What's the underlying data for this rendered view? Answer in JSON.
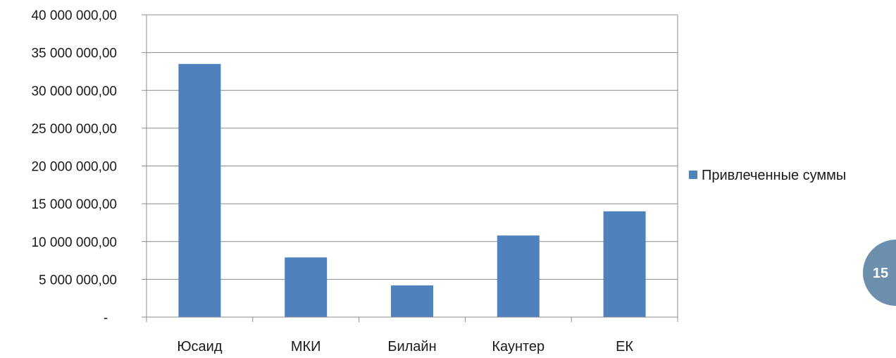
{
  "chart_data": {
    "type": "bar",
    "categories": [
      "Юсаид",
      "МКИ",
      "Билайн",
      "Каунтер",
      "ЕК"
    ],
    "series": [
      {
        "name": "Привлеченные суммы",
        "values": [
          33500000,
          7900000,
          4200000,
          10800000,
          14000000
        ],
        "color": "#4F81BD"
      }
    ],
    "ylim": [
      0,
      40000000
    ],
    "yticks": [
      0,
      5000000,
      10000000,
      15000000,
      20000000,
      25000000,
      30000000,
      35000000,
      40000000
    ],
    "ytick_labels": [
      "-",
      "5 000 000,00",
      "10 000 000,00",
      "15 000 000,00",
      "20 000 000,00",
      "25 000 000,00",
      "30 000 000,00",
      "35 000 000,00",
      "40 000 000,00"
    ],
    "grid": true,
    "legend": "right"
  },
  "page_number": "15",
  "colors": {
    "bar": "#4F81BD",
    "badge": "#6D8FAE",
    "grid": "#8C8C8C"
  }
}
